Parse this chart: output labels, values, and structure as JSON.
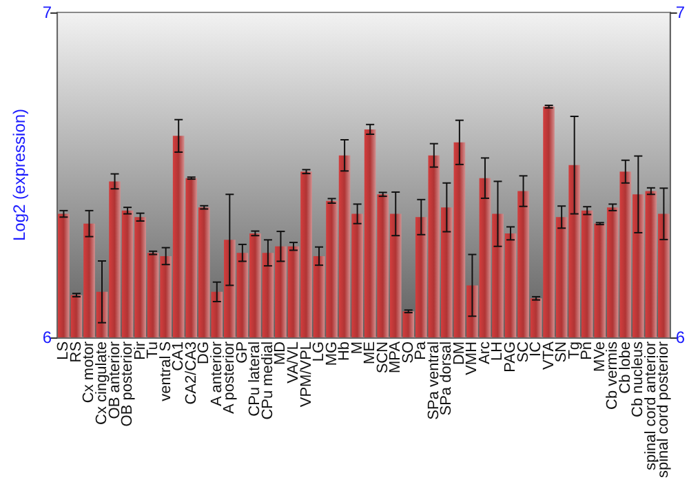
{
  "chart_data": {
    "type": "bar",
    "ylabel": "Log2 (expression)",
    "categories": [
      "LS",
      "RS",
      "Cx motor",
      "Cx cingulate",
      "OB anterior",
      "OB posterior",
      "Pir",
      "Tu",
      "ventral S",
      "CA1",
      "CA2/CA3",
      "DG",
      "A anterior",
      "A posterior",
      "GP",
      "CPu lateral",
      "CPu medial",
      "MD",
      "VA/VL",
      "VPM/VPL",
      "LG",
      "MG",
      "Hb",
      "M",
      "ME",
      "SCN",
      "MPA",
      "SO",
      "Pa",
      "SPa ventral",
      "SPa dorsal",
      "DM",
      "VMH",
      "Arc",
      "LH",
      "PAG",
      "SC",
      "IC",
      "VTA",
      "SN",
      "Tg",
      "Pn",
      "MVe",
      "Cb vermis",
      "Cb lobe",
      "Cb nucleus",
      "spinal cord anterior",
      "spinal cord posterior"
    ],
    "values": [
      6.38,
      6.13,
      6.35,
      6.14,
      6.48,
      6.39,
      6.37,
      6.26,
      6.25,
      6.62,
      6.49,
      6.4,
      6.14,
      6.3,
      6.26,
      6.32,
      6.26,
      6.28,
      6.28,
      6.51,
      6.25,
      6.42,
      6.56,
      6.38,
      6.64,
      6.44,
      6.38,
      6.08,
      6.37,
      6.56,
      6.4,
      6.6,
      6.16,
      6.49,
      6.38,
      6.32,
      6.45,
      6.12,
      6.71,
      6.37,
      6.53,
      6.39,
      6.35,
      6.4,
      6.51,
      6.44,
      6.45,
      6.38
    ],
    "errors": [
      0.01,
      0.005,
      0.04,
      0.095,
      0.023,
      0.01,
      0.012,
      0.005,
      0.026,
      0.05,
      0.003,
      0.005,
      0.03,
      0.14,
      0.026,
      0.007,
      0.04,
      0.046,
      0.012,
      0.006,
      0.028,
      0.007,
      0.048,
      0.03,
      0.015,
      0.006,
      0.067,
      0.004,
      0.054,
      0.036,
      0.075,
      0.068,
      0.095,
      0.062,
      0.1,
      0.02,
      0.047,
      0.005,
      0.004,
      0.034,
      0.15,
      0.012,
      0.003,
      0.01,
      0.035,
      0.118,
      0.01,
      0.079
    ],
    "color": "#b03434",
    "ylim": [
      6,
      7
    ],
    "yticks": [
      6,
      7
    ],
    "y2lim": [
      6,
      7
    ],
    "y2ticks": [
      6,
      7
    ],
    "grid": false
  }
}
